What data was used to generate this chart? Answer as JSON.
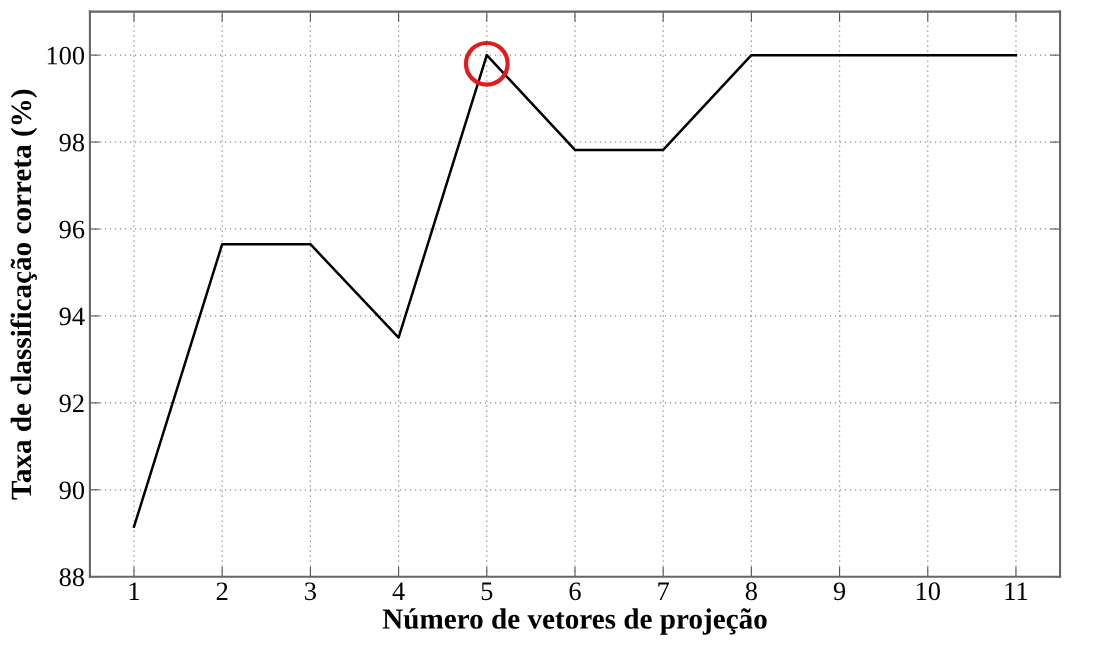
{
  "chart_data": {
    "type": "line",
    "xlabel": "Número de vetores de projeção",
    "ylabel": "Taxa de classificação correta (%)",
    "x": [
      1,
      2,
      3,
      4,
      5,
      6,
      7,
      8,
      9,
      10,
      11
    ],
    "series": [
      {
        "color": "#000000",
        "values": [
          89.15,
          95.65,
          95.65,
          93.5,
          100,
          97.82,
          97.82,
          100,
          100,
          100,
          100
        ]
      },
      {
        "type": "scatter",
        "color": "#e41a1c",
        "x": [
          5
        ],
        "values": [
          99.8
        ],
        "marker": "circle"
      }
    ],
    "xlim": [
      0.5,
      11.5
    ],
    "xticks": [
      1,
      2,
      3,
      4,
      5,
      6,
      7,
      8,
      9,
      10,
      11
    ],
    "ylim": [
      88,
      101
    ],
    "yticks": [
      88,
      90,
      92,
      94,
      96,
      98,
      100
    ],
    "grid": true,
    "line_style": "solid"
  }
}
